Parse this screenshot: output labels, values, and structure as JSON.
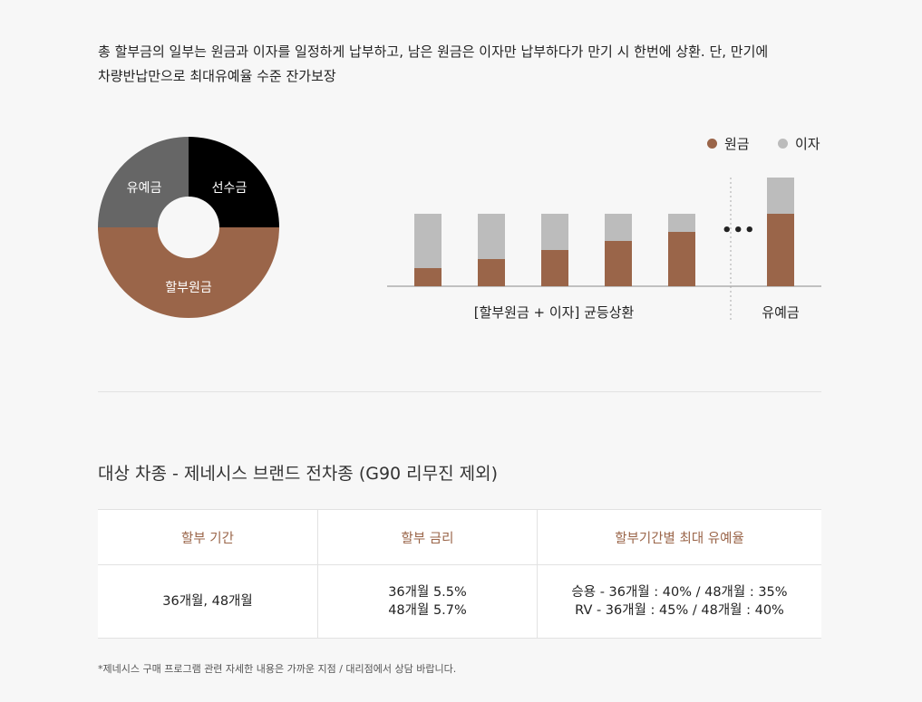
{
  "colors": {
    "brown": "#9a6549",
    "gray": "#bcbcbc",
    "dark_gray": "#666666",
    "black": "#000000"
  },
  "intro": {
    "line1": "총 할부금의 일부는 원금과 이자를 일정하게 납부하고, 남은 원금은 이자만 납부하다가 만기 시 한번에 상환. 단, 만기에",
    "line2": "차량반납만으로 최대유예율 수준 잔가보장"
  },
  "donut": {
    "segments": [
      {
        "label": "선수금",
        "color": "#000000"
      },
      {
        "label": "할부원금",
        "color": "#9a6549"
      },
      {
        "label": "유예금",
        "color": "#666666"
      }
    ]
  },
  "chart_data": {
    "type": "bar",
    "stacked": true,
    "legend": [
      "원금",
      "이자"
    ],
    "legend_position": "top-right",
    "series": [
      {
        "name": "원금",
        "values": [
          20,
          30,
          40,
          50,
          60,
          80
        ]
      },
      {
        "name": "이자",
        "values": [
          60,
          50,
          40,
          30,
          20,
          40
        ]
      }
    ],
    "group_labels": [
      "[할부원금 + 이자] 균등상환",
      "유예금"
    ],
    "ellipsis": "•••",
    "grid": false
  },
  "section": {
    "title": "대상 차종 - 제네시스 브랜드 전차종 (G90 리무진 제외)"
  },
  "table": {
    "headers": [
      "할부 기간",
      "할부 금리",
      "할부기간별 최대 유예율"
    ],
    "cells": {
      "period": "36개월, 48개월",
      "rate_1": "36개월 5.5%",
      "rate_2": "48개월 5.7%",
      "max_1": "승용 - 36개월 : 40% / 48개월 : 35%",
      "max_2": "RV - 36개월 : 45% / 48개월 : 40%"
    }
  },
  "note": "*제네시스 구매 프로그램 관련 자세한 내용은 가까운 지점 / 대리점에서 상담 바랍니다."
}
